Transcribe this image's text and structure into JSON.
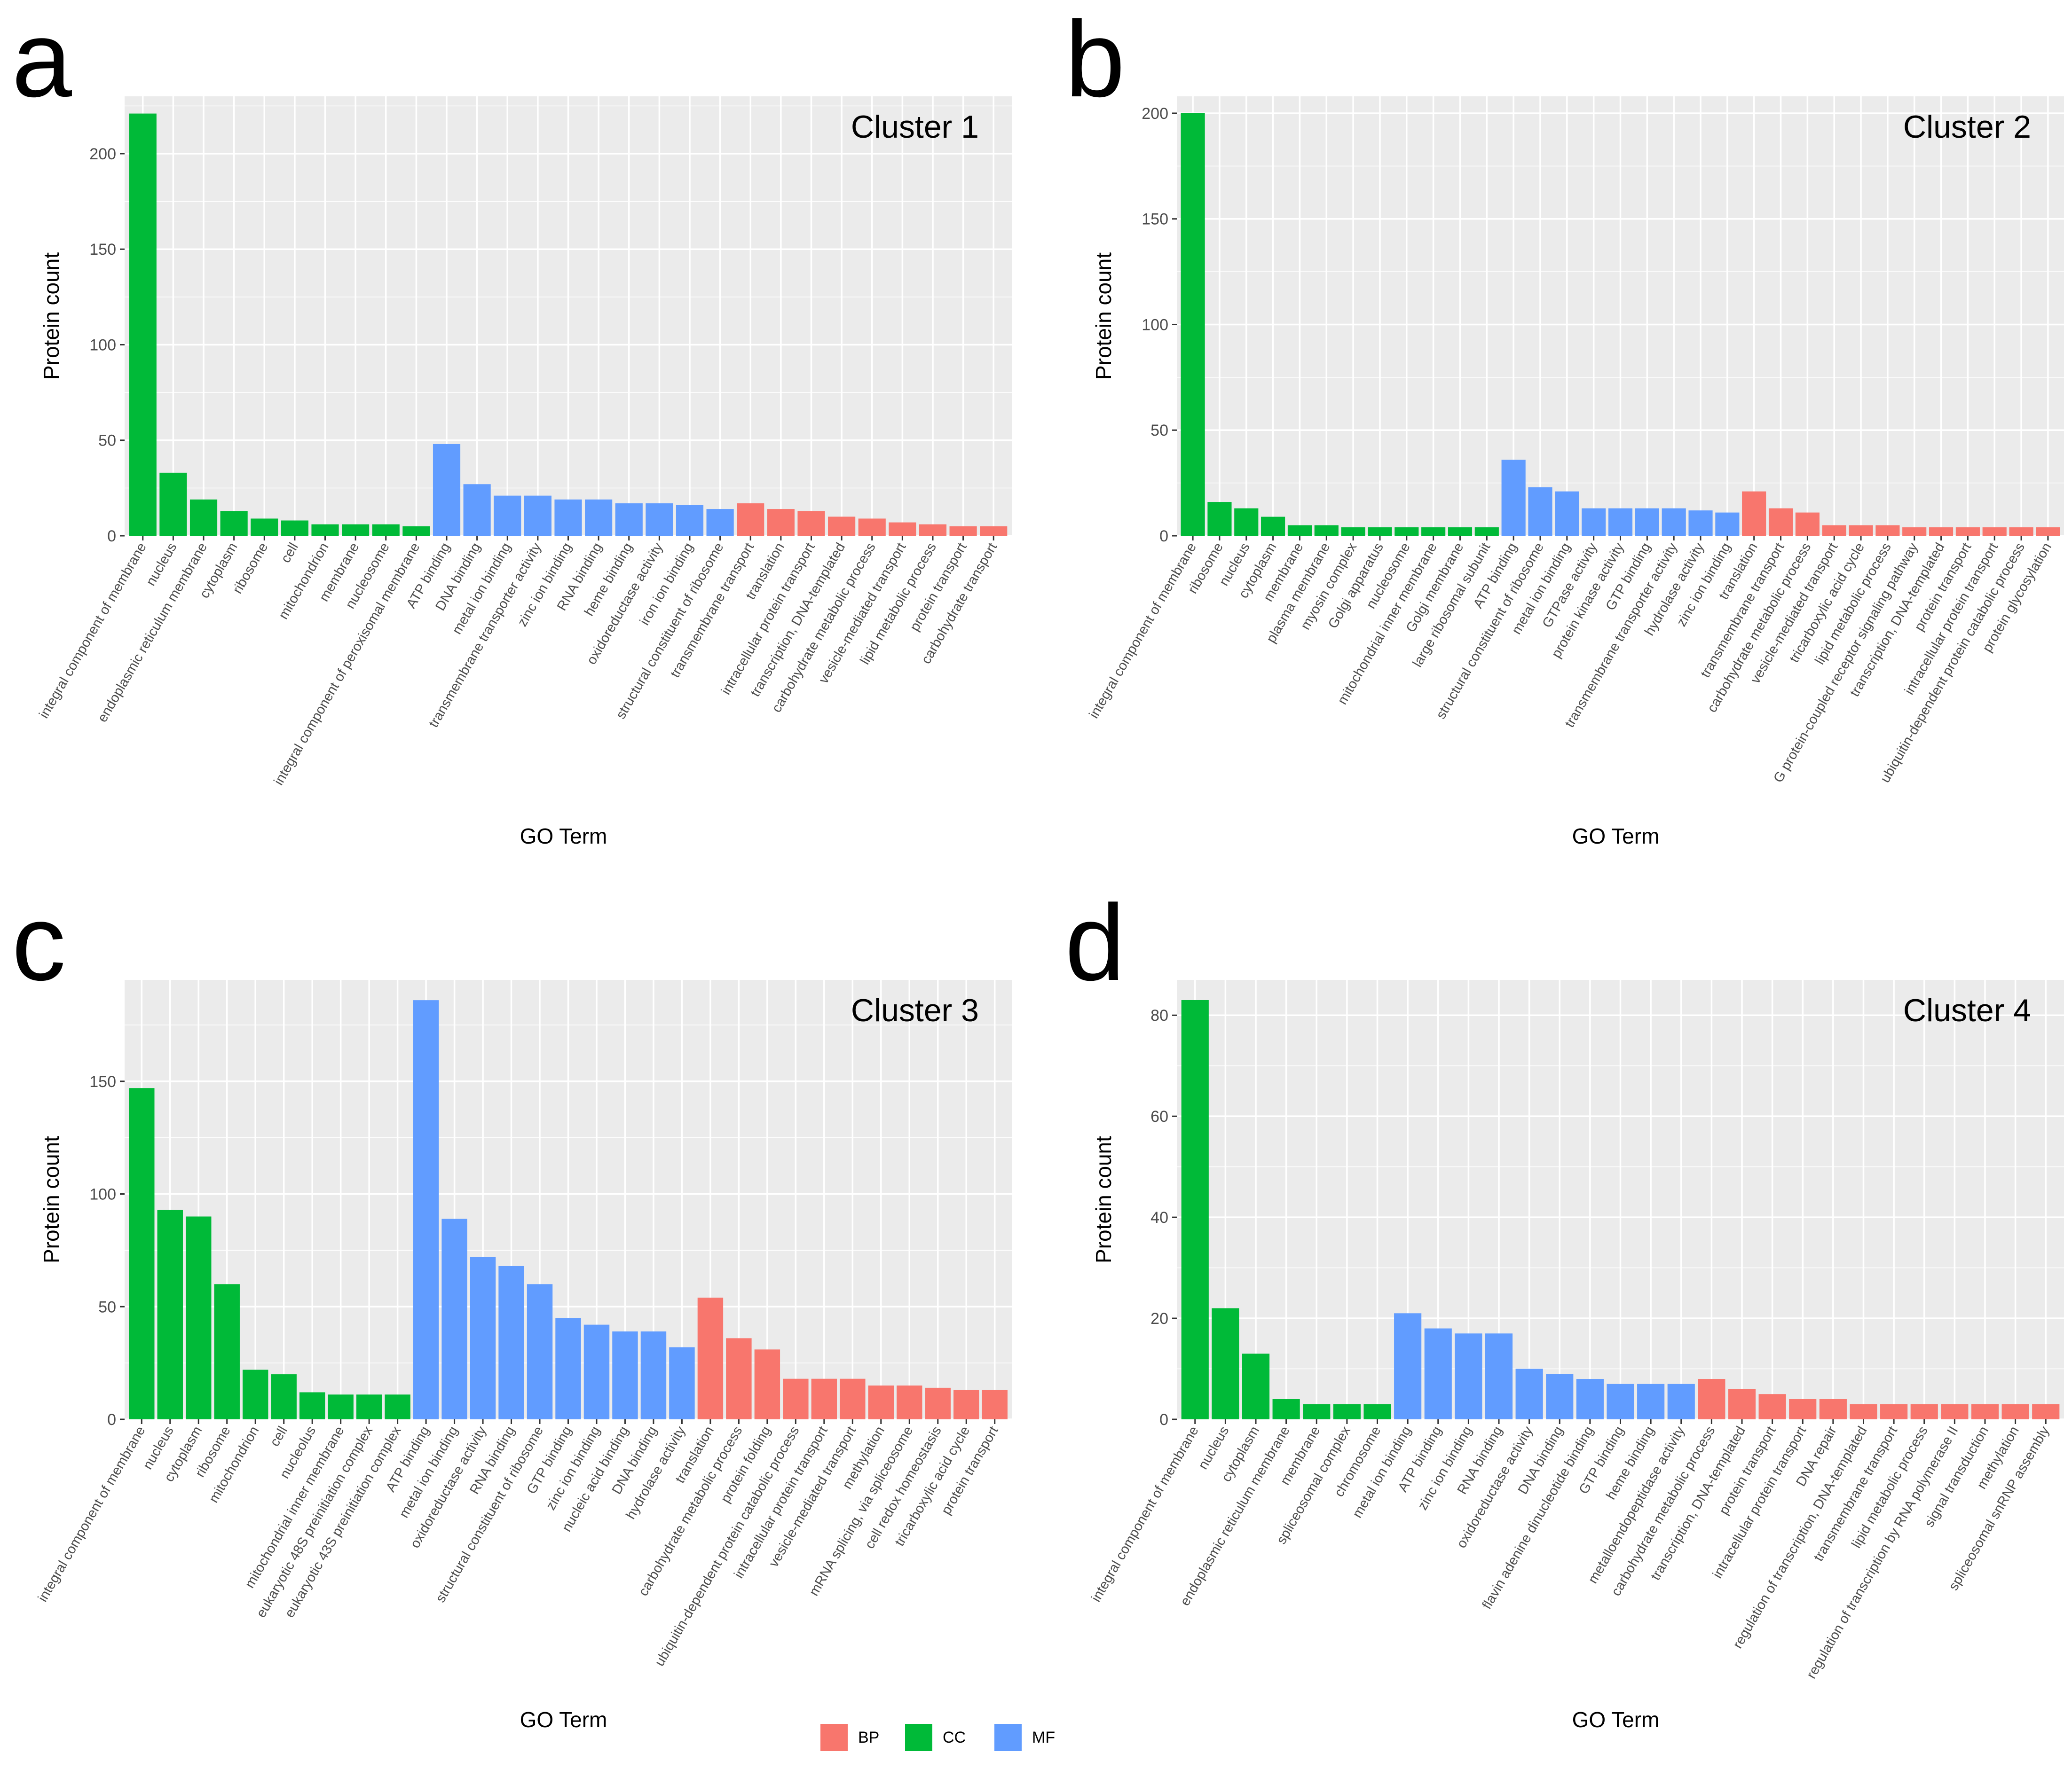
{
  "colors": {
    "BP": "#f8766d",
    "CC": "#00ba38",
    "MF": "#619cff",
    "panel_bg": "#ebebeb",
    "grid": "#ffffff"
  },
  "legend": [
    {
      "key": "BP",
      "label": "BP"
    },
    {
      "key": "CC",
      "label": "CC"
    },
    {
      "key": "MF",
      "label": "MF"
    }
  ],
  "chart_data": [
    {
      "type": "bar",
      "panel_letter": "a",
      "title": "Cluster 1",
      "xlabel": "GO Term",
      "ylabel": "Protein count",
      "ylim": [
        0,
        230
      ],
      "yticks": [
        0,
        50,
        100,
        150,
        200
      ],
      "categories": [
        "integral component of membrane",
        "nucleus",
        "endoplasmic reticulum membrane",
        "cytoplasm",
        "ribosome",
        "cell",
        "mitochondrion",
        "membrane",
        "nucleosome",
        "integral component of peroxisomal membrane",
        "ATP binding",
        "DNA binding",
        "metal ion binding",
        "transmembrane transporter activity",
        "zinc ion binding",
        "RNA binding",
        "heme binding",
        "oxidoreductase activity",
        "iron ion binding",
        "structural constituent of ribosome",
        "transmembrane transport",
        "translation",
        "intracellular protein transport",
        "transcription, DNA-templated",
        "carbohydrate metabolic process",
        "vesicle-mediated transport",
        "lipid metabolic process",
        "protein transport",
        "carbohydrate transport"
      ],
      "values": [
        221,
        33,
        19,
        13,
        9,
        8,
        6,
        6,
        6,
        5,
        48,
        27,
        21,
        21,
        19,
        19,
        17,
        17,
        16,
        14,
        17,
        14,
        13,
        10,
        9,
        7,
        6,
        5,
        5
      ],
      "groups": [
        "CC",
        "CC",
        "CC",
        "CC",
        "CC",
        "CC",
        "CC",
        "CC",
        "CC",
        "CC",
        "MF",
        "MF",
        "MF",
        "MF",
        "MF",
        "MF",
        "MF",
        "MF",
        "MF",
        "MF",
        "BP",
        "BP",
        "BP",
        "BP",
        "BP",
        "BP",
        "BP",
        "BP",
        "BP"
      ]
    },
    {
      "type": "bar",
      "panel_letter": "b",
      "title": "Cluster 2",
      "xlabel": "GO Term",
      "ylabel": "Protein count",
      "ylim": [
        0,
        208
      ],
      "yticks": [
        0,
        50,
        100,
        150,
        200
      ],
      "categories": [
        "integral component of membrane",
        "ribosome",
        "nucleus",
        "cytoplasm",
        "membrane",
        "plasma membrane",
        "myosin complex",
        "Golgi apparatus",
        "nucleosome",
        "mitochondrial inner membrane",
        "Golgi membrane",
        "large ribosomal subunit",
        "ATP binding",
        "structural constituent of ribosome",
        "metal ion binding",
        "GTPase activity",
        "protein kinase activity",
        "GTP binding",
        "transmembrane transporter activity",
        "hydrolase activity",
        "zinc ion binding",
        "translation",
        "transmembrane transport",
        "carbohydrate metabolic process",
        "vesicle-mediated transport",
        "tricarboxylic acid cycle",
        "lipid metabolic process",
        "G protein-coupled receptor signaling pathway",
        "transcription, DNA-templated",
        "protein transport",
        "intracellular protein transport",
        "ubiquitin-dependent protein catabolic process",
        "protein glycosylation"
      ],
      "values": [
        200,
        16,
        13,
        9,
        5,
        5,
        4,
        4,
        4,
        4,
        4,
        4,
        36,
        23,
        21,
        13,
        13,
        13,
        13,
        12,
        11,
        21,
        13,
        11,
        5,
        5,
        5,
        4,
        4,
        4,
        4,
        4,
        4
      ],
      "groups": [
        "CC",
        "CC",
        "CC",
        "CC",
        "CC",
        "CC",
        "CC",
        "CC",
        "CC",
        "CC",
        "CC",
        "CC",
        "MF",
        "MF",
        "MF",
        "MF",
        "MF",
        "MF",
        "MF",
        "MF",
        "MF",
        "BP",
        "BP",
        "BP",
        "BP",
        "BP",
        "BP",
        "BP",
        "BP",
        "BP",
        "BP",
        "BP",
        "BP"
      ]
    },
    {
      "type": "bar",
      "panel_letter": "c",
      "title": "Cluster 3",
      "xlabel": "GO Term",
      "ylabel": "Protein count",
      "ylim": [
        0,
        195
      ],
      "yticks": [
        0,
        50,
        100,
        150
      ],
      "categories": [
        "integral component of membrane",
        "nucleus",
        "cytoplasm",
        "ribosome",
        "mitochondrion",
        "cell",
        "nucleolus",
        "mitochondrial inner membrane",
        "eukaryotic 48S preinitiation complex",
        "eukaryotic 43S preinitiation complex",
        "ATP binding",
        "metal ion binding",
        "oxidoreductase activity",
        "RNA binding",
        "structural constituent of ribosome",
        "GTP binding",
        "zinc ion binding",
        "nucleic acid binding",
        "DNA binding",
        "hydrolase activity",
        "translation",
        "carbohydrate metabolic process",
        "protein folding",
        "ubiquitin-dependent protein catabolic process",
        "intracellular protein transport",
        "vesicle-mediated transport",
        "methylation",
        "mRNA splicing, via spliceosome",
        "cell redox homeostasis",
        "tricarboxylic acid cycle",
        "protein transport"
      ],
      "values": [
        147,
        93,
        90,
        60,
        22,
        20,
        12,
        11,
        11,
        11,
        186,
        89,
        72,
        68,
        60,
        45,
        42,
        39,
        39,
        32,
        54,
        36,
        31,
        18,
        18,
        18,
        15,
        15,
        14,
        13,
        13
      ],
      "groups": [
        "CC",
        "CC",
        "CC",
        "CC",
        "CC",
        "CC",
        "CC",
        "CC",
        "CC",
        "CC",
        "MF",
        "MF",
        "MF",
        "MF",
        "MF",
        "MF",
        "MF",
        "MF",
        "MF",
        "MF",
        "BP",
        "BP",
        "BP",
        "BP",
        "BP",
        "BP",
        "BP",
        "BP",
        "BP",
        "BP",
        "BP"
      ]
    },
    {
      "type": "bar",
      "panel_letter": "d",
      "title": "Cluster 4",
      "xlabel": "GO Term",
      "ylabel": "Protein count",
      "ylim": [
        0,
        87
      ],
      "yticks": [
        0,
        20,
        40,
        60,
        80
      ],
      "categories": [
        "integral component of membrane",
        "nucleus",
        "cytoplasm",
        "endoplasmic reticulum membrane",
        "membrane",
        "spliceosomal complex",
        "chromosome",
        "metal ion binding",
        "ATP binding",
        "zinc ion binding",
        "RNA binding",
        "oxidoreductase activity",
        "DNA binding",
        "flavin adenine dinucleotide binding",
        "GTP binding",
        "heme binding",
        "metalloendopeptidase activity",
        "carbohydrate metabolic process",
        "transcription, DNA-templated",
        "protein transport",
        "intracellular protein transport",
        "DNA repair",
        "regulation of transcription, DNA-templated",
        "transmembrane transport",
        "lipid metabolic process",
        "regulation of transcription by RNA polymerase II",
        "signal transduction",
        "methylation",
        "spliceosomal snRNP assembly"
      ],
      "values": [
        83,
        22,
        13,
        4,
        3,
        3,
        3,
        21,
        18,
        17,
        17,
        10,
        9,
        8,
        7,
        7,
        7,
        8,
        6,
        5,
        4,
        4,
        3,
        3,
        3,
        3,
        3,
        3,
        3
      ],
      "groups": [
        "CC",
        "CC",
        "CC",
        "CC",
        "CC",
        "CC",
        "CC",
        "MF",
        "MF",
        "MF",
        "MF",
        "MF",
        "MF",
        "MF",
        "MF",
        "MF",
        "MF",
        "BP",
        "BP",
        "BP",
        "BP",
        "BP",
        "BP",
        "BP",
        "BP",
        "BP",
        "BP",
        "BP",
        "BP"
      ]
    }
  ]
}
